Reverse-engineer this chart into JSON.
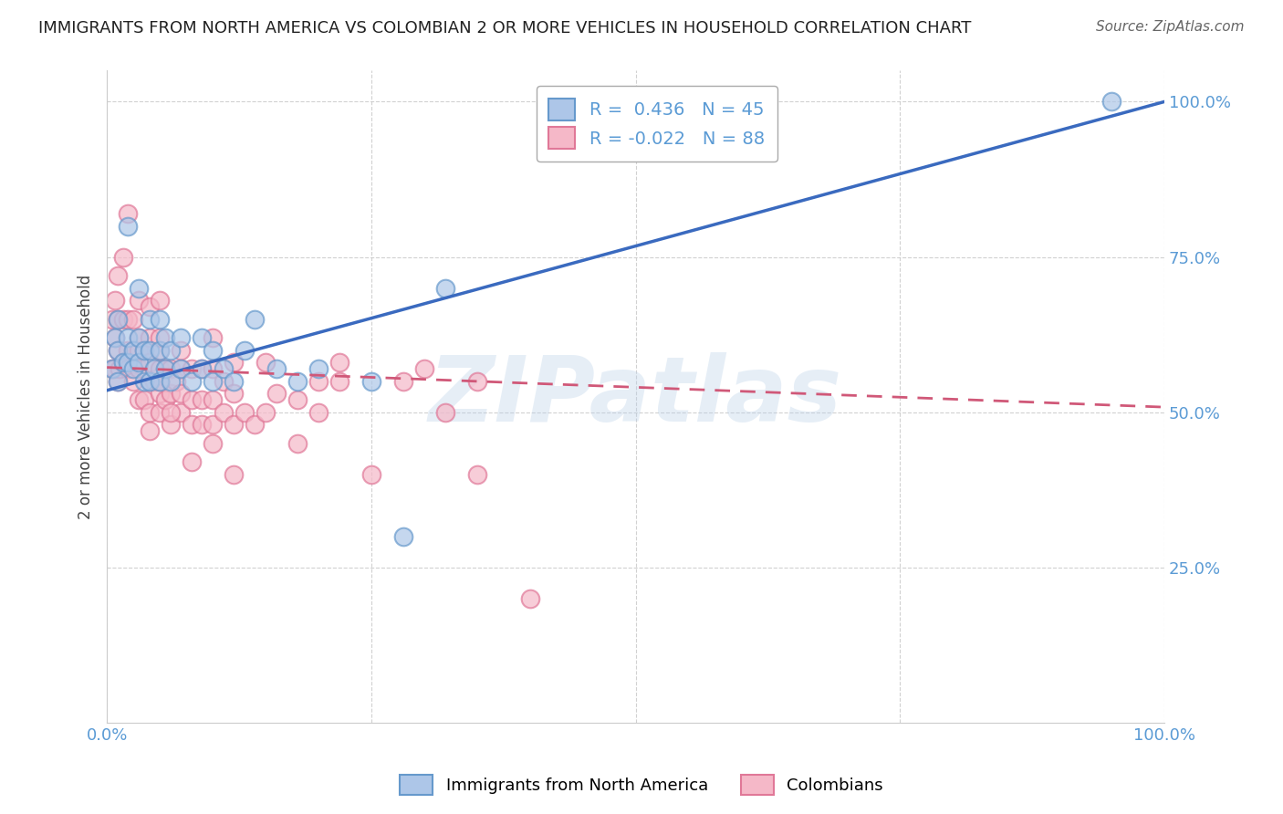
{
  "title": "IMMIGRANTS FROM NORTH AMERICA VS COLOMBIAN 2 OR MORE VEHICLES IN HOUSEHOLD CORRELATION CHART",
  "source": "Source: ZipAtlas.com",
  "ylabel": "2 or more Vehicles in Household",
  "watermark": "ZIPatlas",
  "blue_R": 0.436,
  "blue_N": 45,
  "pink_R": -0.022,
  "pink_N": 88,
  "legend_label_blue": "Immigrants from North America",
  "legend_label_pink": "Colombians",
  "blue_color": "#adc6e8",
  "blue_edge": "#6699cc",
  "pink_color": "#f5b8c8",
  "pink_edge": "#e07898",
  "blue_line_color": "#3a6abf",
  "pink_line_color": "#d05878",
  "background_color": "#ffffff",
  "grid_color": "#cccccc",
  "title_color": "#222222",
  "axis_tick_color": "#5b9bd5",
  "blue_scatter_x": [
    0.005,
    0.008,
    0.01,
    0.01,
    0.01,
    0.015,
    0.02,
    0.02,
    0.02,
    0.025,
    0.025,
    0.03,
    0.03,
    0.03,
    0.035,
    0.035,
    0.04,
    0.04,
    0.04,
    0.045,
    0.05,
    0.05,
    0.05,
    0.055,
    0.055,
    0.06,
    0.06,
    0.07,
    0.07,
    0.08,
    0.09,
    0.09,
    0.1,
    0.1,
    0.11,
    0.12,
    0.13,
    0.14,
    0.16,
    0.18,
    0.2,
    0.25,
    0.28,
    0.32,
    0.95
  ],
  "blue_scatter_y": [
    0.57,
    0.62,
    0.55,
    0.6,
    0.65,
    0.58,
    0.58,
    0.62,
    0.8,
    0.57,
    0.6,
    0.58,
    0.62,
    0.7,
    0.55,
    0.6,
    0.55,
    0.6,
    0.65,
    0.57,
    0.55,
    0.6,
    0.65,
    0.57,
    0.62,
    0.55,
    0.6,
    0.57,
    0.62,
    0.55,
    0.57,
    0.62,
    0.55,
    0.6,
    0.57,
    0.55,
    0.6,
    0.65,
    0.57,
    0.55,
    0.57,
    0.55,
    0.3,
    0.7,
    1.0
  ],
  "pink_scatter_x": [
    0.005,
    0.005,
    0.007,
    0.008,
    0.008,
    0.01,
    0.01,
    0.01,
    0.01,
    0.012,
    0.015,
    0.015,
    0.015,
    0.02,
    0.02,
    0.02,
    0.02,
    0.025,
    0.025,
    0.025,
    0.03,
    0.03,
    0.03,
    0.03,
    0.03,
    0.035,
    0.035,
    0.04,
    0.04,
    0.04,
    0.04,
    0.04,
    0.045,
    0.05,
    0.05,
    0.05,
    0.05,
    0.05,
    0.05,
    0.055,
    0.055,
    0.06,
    0.06,
    0.06,
    0.065,
    0.07,
    0.07,
    0.07,
    0.07,
    0.08,
    0.08,
    0.08,
    0.09,
    0.09,
    0.09,
    0.1,
    0.1,
    0.1,
    0.1,
    0.11,
    0.11,
    0.12,
    0.12,
    0.12,
    0.13,
    0.14,
    0.15,
    0.16,
    0.18,
    0.2,
    0.22,
    0.25,
    0.28,
    0.3,
    0.32,
    0.35,
    0.4,
    0.35,
    0.18,
    0.22,
    0.15,
    0.2,
    0.12,
    0.1,
    0.08,
    0.06,
    0.05,
    0.04
  ],
  "pink_scatter_y": [
    0.57,
    0.65,
    0.57,
    0.62,
    0.68,
    0.55,
    0.6,
    0.65,
    0.72,
    0.57,
    0.58,
    0.65,
    0.75,
    0.57,
    0.6,
    0.65,
    0.82,
    0.55,
    0.6,
    0.65,
    0.52,
    0.57,
    0.6,
    0.62,
    0.68,
    0.52,
    0.6,
    0.5,
    0.55,
    0.58,
    0.62,
    0.67,
    0.55,
    0.5,
    0.53,
    0.57,
    0.6,
    0.62,
    0.68,
    0.52,
    0.57,
    0.48,
    0.53,
    0.57,
    0.55,
    0.5,
    0.53,
    0.57,
    0.6,
    0.48,
    0.52,
    0.57,
    0.48,
    0.52,
    0.57,
    0.48,
    0.52,
    0.57,
    0.62,
    0.5,
    0.55,
    0.48,
    0.53,
    0.58,
    0.5,
    0.48,
    0.5,
    0.53,
    0.45,
    0.55,
    0.58,
    0.4,
    0.55,
    0.57,
    0.5,
    0.4,
    0.2,
    0.55,
    0.52,
    0.55,
    0.58,
    0.5,
    0.4,
    0.45,
    0.42,
    0.5,
    0.55,
    0.47
  ],
  "blue_line_x0": 0.0,
  "blue_line_y0": 0.535,
  "blue_line_x1": 1.0,
  "blue_line_y1": 1.0,
  "pink_line_x0": 0.0,
  "pink_line_y0": 0.572,
  "pink_line_x1": 1.0,
  "pink_line_y1": 0.508,
  "xlim": [
    0.0,
    1.0
  ],
  "ylim": [
    0.0,
    1.05
  ],
  "xticks": [
    0.0,
    0.25,
    0.5,
    0.75,
    1.0
  ],
  "xtick_labels_show": [
    "0.0%",
    "",
    "",
    "",
    "100.0%"
  ],
  "yticks": [
    0.25,
    0.5,
    0.75,
    1.0
  ],
  "ytick_labels": [
    "25.0%",
    "50.0%",
    "75.0%",
    "100.0%"
  ]
}
